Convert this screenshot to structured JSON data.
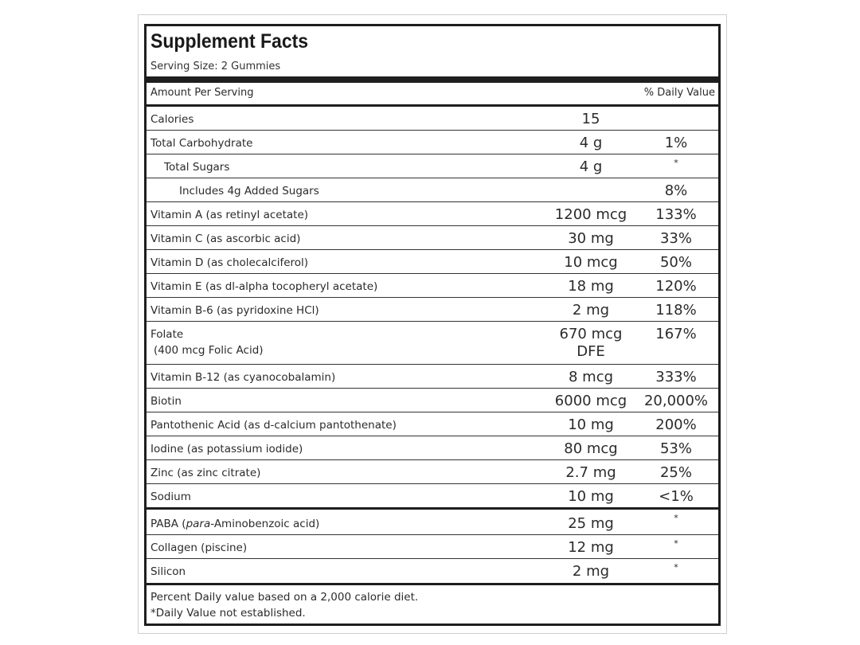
{
  "label": {
    "title": "Supplement Facts",
    "serving_size": "Serving Size: 2 Gummies",
    "amount_per_serving": "Amount Per Serving",
    "daily_value_header": "% Daily Value",
    "rows": [
      {
        "name": "Calories",
        "amount": "15",
        "dv": ""
      },
      {
        "name": "Total Carbohydrate",
        "amount": "4 g",
        "dv": "1%"
      },
      {
        "name": "Total Sugars",
        "amount": "4 g",
        "dv": "*"
      },
      {
        "name": "Includes 4g Added Sugars",
        "amount": "",
        "dv": "8%"
      },
      {
        "name": "Vitamin A (as retinyl acetate)",
        "amount": "1200 mcg",
        "dv": "133%"
      },
      {
        "name": "Vitamin C (as ascorbic acid)",
        "amount": "30 mg",
        "dv": "33%"
      },
      {
        "name": "Vitamin D (as cholecalciferol)",
        "amount": "10 mcg",
        "dv": "50%"
      },
      {
        "name": "Vitamin E (as dl-alpha tocopheryl acetate)",
        "amount": "18 mg",
        "dv": "120%"
      },
      {
        "name": "Vitamin B-6 (as pyridoxine HCl)",
        "amount": "2 mg",
        "dv": "118%"
      },
      {
        "name": "Folate",
        "sub": "(400 mcg Folic Acid)",
        "amount": "670 mcg",
        "amount2": "DFE",
        "dv": "167%"
      },
      {
        "name": "Vitamin B-12 (as cyanocobalamin)",
        "amount": "8 mcg",
        "dv": "333%"
      },
      {
        "name": "Biotin",
        "amount": "6000 mcg",
        "dv": "20,000%"
      },
      {
        "name": "Pantothenic Acid (as d-calcium pantothenate)",
        "amount": "10 mg",
        "dv": "200%"
      },
      {
        "name": "Iodine (as potassium iodide)",
        "amount": "80 mcg",
        "dv": "53%"
      },
      {
        "name": "Zinc (as zinc citrate)",
        "amount": "2.7 mg",
        "dv": "25%"
      },
      {
        "name": "Sodium",
        "amount": "10 mg",
        "dv": "<1%"
      },
      {
        "name": "PABA (para-Aminobenzoic acid)",
        "amount": "25 mg",
        "dv": "*"
      },
      {
        "name": "Collagen (piscine)",
        "amount": "12 mg",
        "dv": "*"
      },
      {
        "name": "Silicon",
        "amount": "2 mg",
        "dv": "*"
      }
    ],
    "footer_line1": "Percent Daily value based on a 2,000 calorie diet.",
    "footer_line2": "*Daily Value not established."
  }
}
